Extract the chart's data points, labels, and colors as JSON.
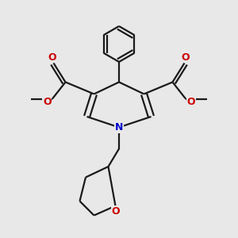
{
  "bg_color": "#e8e8e8",
  "bond_color": "#1a1a1a",
  "nitrogen_color": "#0000cc",
  "oxygen_color": "#cc0000",
  "line_width": 1.6,
  "figsize": [
    3.0,
    3.0
  ],
  "dpi": 100,
  "xlim": [
    0,
    10
  ],
  "ylim": [
    0,
    10
  ]
}
